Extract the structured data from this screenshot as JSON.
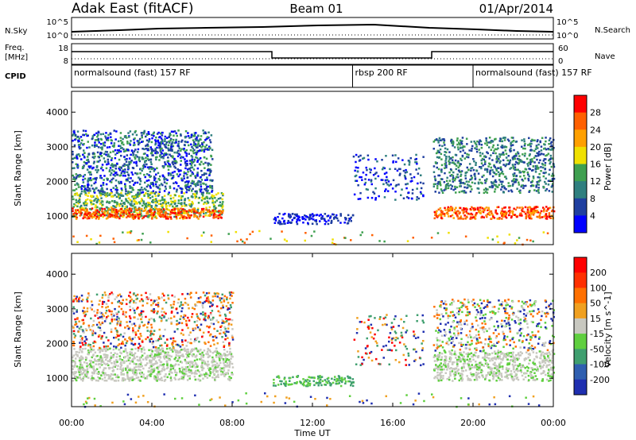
{
  "header": {
    "station": "Adak East (fitACF)",
    "beam": "Beam 01",
    "date": "01/Apr/2014"
  },
  "panels": {
    "nsky_label": "N.Sky",
    "nsky_ticks": [
      "10^5",
      "10^0"
    ],
    "nsearch_label": "N.Search",
    "nsearch_ticks": [
      "10^5",
      "10^0"
    ],
    "freq_label": "Freq.",
    "freq_unit": "[MHz]",
    "freq_ticks": [
      "18",
      "8"
    ],
    "nave_label": "Nave",
    "nave_ticks": [
      "60",
      "0"
    ],
    "cpid_label": "CPID",
    "cpid_segments": [
      {
        "label": "normalsound (fast) 157 RF",
        "start": 0,
        "end": 14
      },
      {
        "label": "rbsp 200 RF",
        "start": 14,
        "end": 20
      },
      {
        "label": "normalsound (fast) 157 RF",
        "start": 20,
        "end": 24
      }
    ]
  },
  "chart_data": [
    {
      "type": "heatmap",
      "name": "power",
      "ylabel": "Slant Range [km]",
      "ylim": [
        180,
        4600
      ],
      "yticks": [
        "1000",
        "2000",
        "3000",
        "4000"
      ],
      "xlim_hours": [
        0,
        24
      ],
      "colorbar_label": "Power [dB]",
      "colorbar_ticks": [
        "4",
        "8",
        "12",
        "16",
        "20",
        "24",
        "28"
      ],
      "colorbar_colors": [
        "#0000ff",
        "#1f3fa0",
        "#2f7f7f",
        "#3fa050",
        "#f0e000",
        "#ffa000",
        "#ff6000",
        "#ff0000"
      ]
    },
    {
      "type": "heatmap",
      "name": "velocity",
      "ylabel": "Slant Range [km]",
      "ylim": [
        180,
        4600
      ],
      "yticks": [
        "1000",
        "2000",
        "3000",
        "4000"
      ],
      "xlim_hours": [
        0,
        24
      ],
      "xlabel": "Time UT",
      "xticks": [
        "00:00",
        "04:00",
        "08:00",
        "12:00",
        "16:00",
        "20:00",
        "00:00"
      ],
      "colorbar_label": "Velocity [m s^-1]",
      "colorbar_ticks": [
        "200",
        "100",
        "50",
        "15",
        "-15",
        "-50",
        "-100",
        "-200"
      ],
      "colorbar_colors": [
        "#1f2fb0",
        "#2f5fb0",
        "#3f9f6f",
        "#5fcf3f",
        "#c8c8c0",
        "#f0a020",
        "#ff7000",
        "#ff3000",
        "#ff0000"
      ]
    }
  ]
}
